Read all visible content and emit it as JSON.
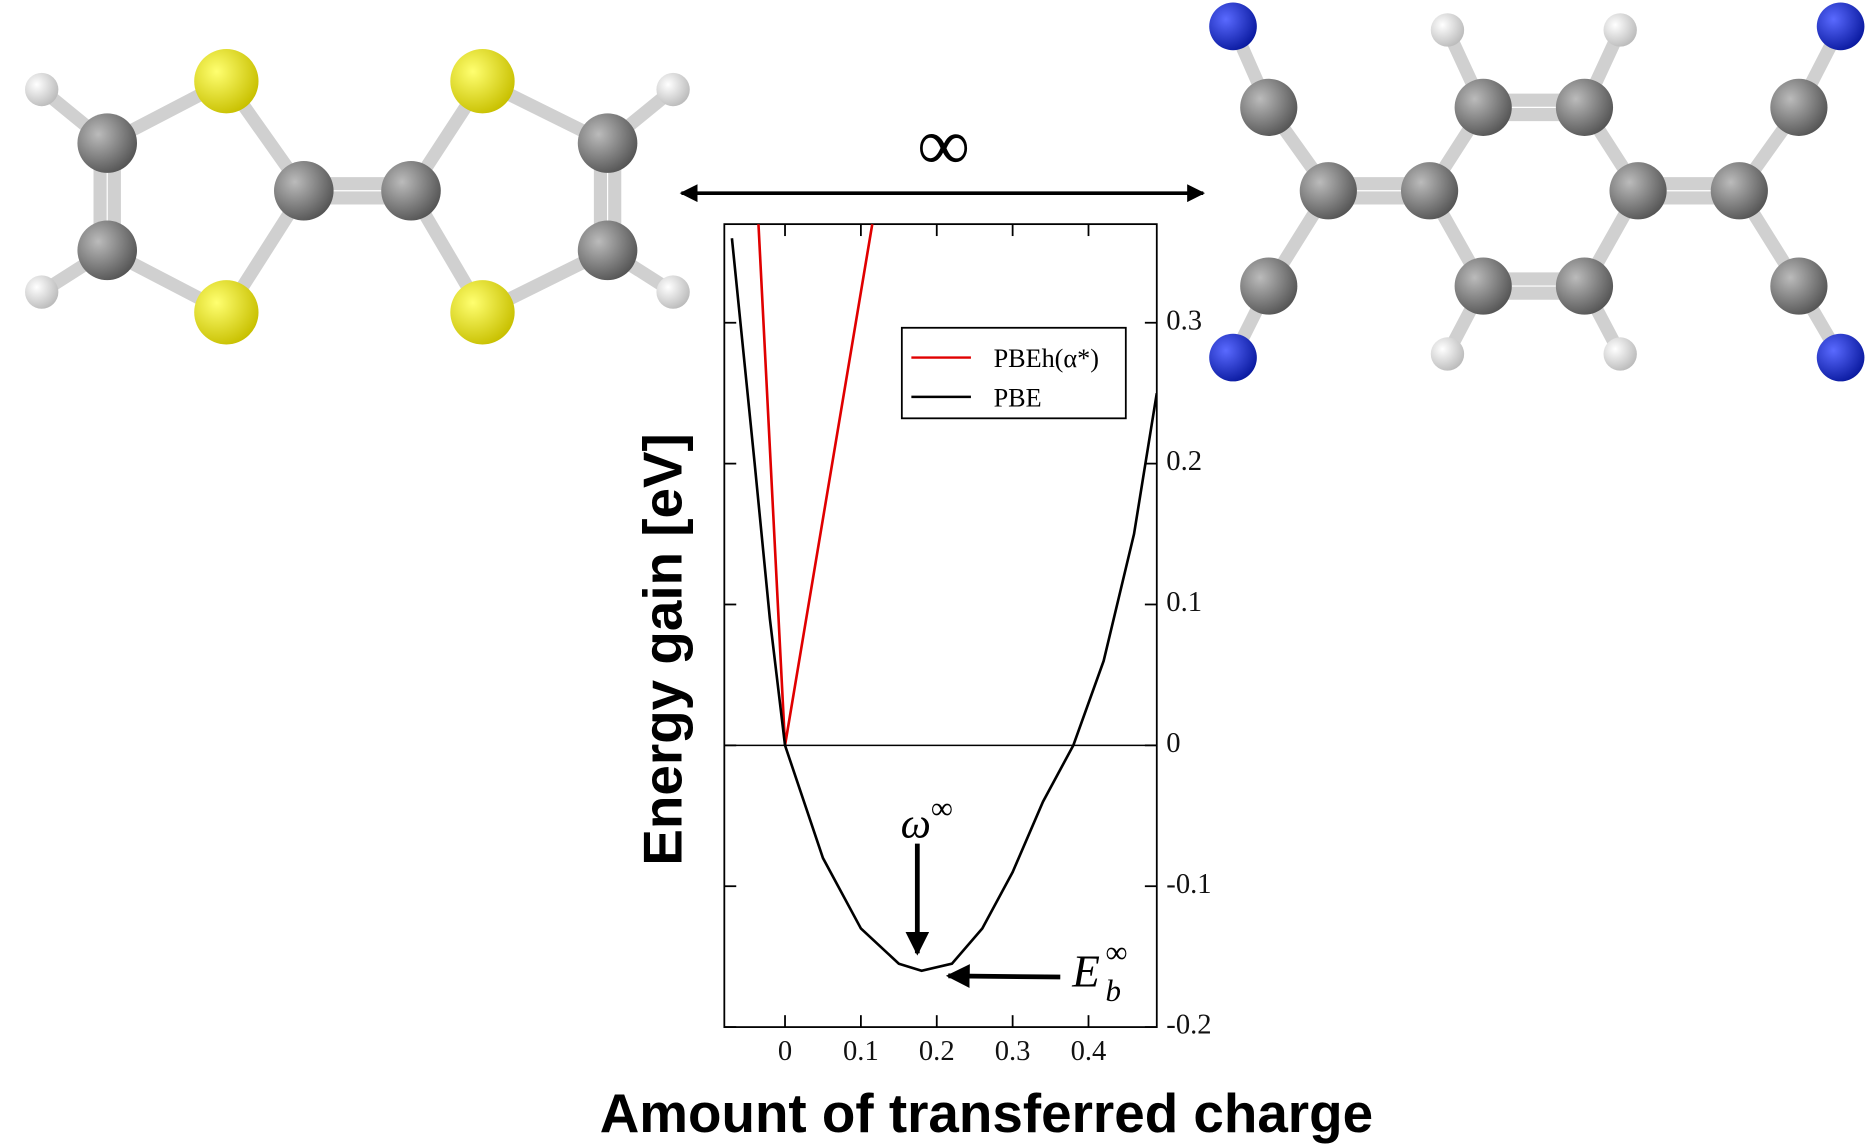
{
  "chart_data": {
    "type": "line",
    "x_label": "Amount of transferred charge",
    "y_label": "Energy gain [eV]",
    "top_label": "∞",
    "annotations": [
      {
        "base": "ω",
        "sup": "∞"
      },
      {
        "base": "E",
        "sub": "b",
        "sup": "∞"
      }
    ],
    "series": [
      {
        "name": "PBEh(α*)",
        "color": "#e00000",
        "x": [
          -0.035,
          0,
          0.115
        ],
        "values": [
          0.37,
          0,
          0.37
        ]
      },
      {
        "name": "PBE",
        "color": "#000000",
        "x": [
          -0.07,
          -0.04,
          -0.02,
          0,
          0.05,
          0.1,
          0.15,
          0.18,
          0.22,
          0.26,
          0.3,
          0.34,
          0.38,
          0.42,
          0.46,
          0.49
        ],
        "values": [
          0.36,
          0.2,
          0.09,
          0,
          -0.08,
          -0.13,
          -0.155,
          -0.16,
          -0.155,
          -0.13,
          -0.09,
          -0.04,
          0,
          0.06,
          0.15,
          0.25
        ]
      }
    ],
    "xlim": [
      -0.08,
      0.49
    ],
    "ylim": [
      -0.2,
      0.37
    ],
    "xticks": [
      0,
      0.1,
      0.2,
      0.3,
      0.4
    ],
    "yticks": [
      -0.2,
      -0.1,
      0,
      0.1,
      0.2,
      0.3
    ],
    "legend": "upper-right"
  }
}
